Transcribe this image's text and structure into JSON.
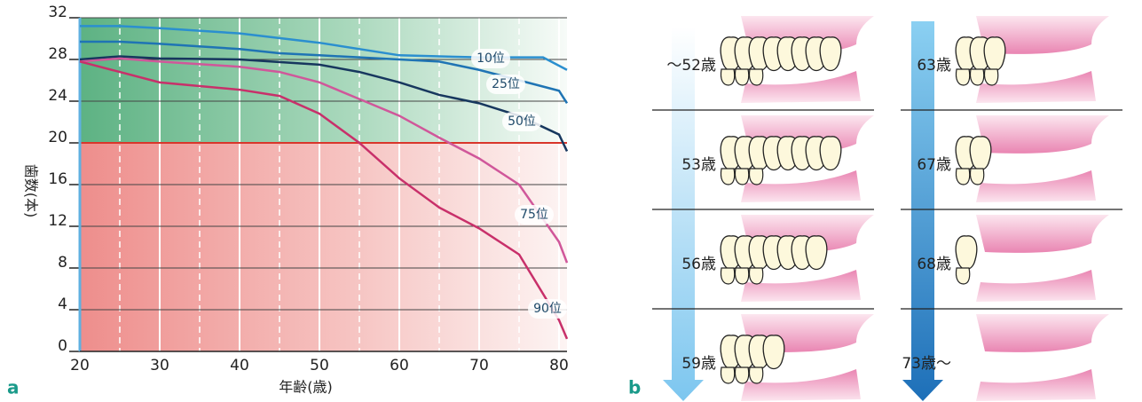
{
  "chart_data": {
    "type": "line",
    "panel_label": "a",
    "xlabel": "年齢(歳)",
    "ylabel": "歯数(本)",
    "xlim": [
      20,
      81
    ],
    "xticks": [
      20,
      30,
      40,
      50,
      60,
      70,
      80
    ],
    "ylim": [
      0,
      32
    ],
    "yticks": [
      0,
      4,
      8,
      12,
      16,
      20,
      24,
      28,
      32
    ],
    "threshold": 20,
    "threshold_color": "#d9362b",
    "grid": true,
    "series": [
      {
        "name": "10位",
        "color": "#2b8fcf",
        "x": [
          20,
          25,
          30,
          40,
          50,
          60,
          70,
          78,
          81
        ],
        "values": [
          31.2,
          31.2,
          31.0,
          30.5,
          29.6,
          28.4,
          28.2,
          28.2,
          27.0
        ]
      },
      {
        "name": "25位",
        "color": "#1f74b4",
        "x": [
          20,
          25,
          30,
          40,
          45,
          50,
          60,
          65,
          70,
          75,
          80,
          81
        ],
        "values": [
          29.7,
          29.7,
          29.5,
          29.0,
          28.6,
          28.4,
          28.0,
          27.8,
          27.0,
          26.0,
          25.0,
          23.8
        ]
      },
      {
        "name": "50位",
        "color": "#17375e",
        "x": [
          20,
          25,
          30,
          40,
          50,
          55,
          60,
          65,
          70,
          75,
          80,
          81
        ],
        "values": [
          28.0,
          28.3,
          28.1,
          28.0,
          27.5,
          26.8,
          25.8,
          24.6,
          23.8,
          22.6,
          20.8,
          19.2
        ]
      },
      {
        "name": "75位",
        "color": "#d0579a",
        "x": [
          20,
          25,
          30,
          40,
          45,
          50,
          55,
          60,
          65,
          70,
          75,
          80,
          81
        ],
        "values": [
          27.8,
          28.1,
          27.8,
          27.3,
          26.8,
          25.8,
          24.2,
          22.6,
          20.5,
          18.5,
          16.0,
          10.5,
          8.5
        ]
      },
      {
        "name": "90位",
        "color": "#c8306a",
        "x": [
          20,
          25,
          30,
          40,
          45,
          50,
          55,
          60,
          65,
          70,
          75,
          80,
          81
        ],
        "values": [
          27.8,
          26.8,
          25.8,
          25.1,
          24.5,
          22.8,
          20.0,
          16.6,
          13.8,
          11.8,
          9.3,
          3.0,
          1.2
        ]
      }
    ]
  },
  "panel_b": {
    "label": "b",
    "left": [
      "～52歳",
      "53歳",
      "56歳",
      "59歳"
    ],
    "right": [
      "63歳",
      "67歳",
      "68歳",
      "73歳～"
    ]
  }
}
